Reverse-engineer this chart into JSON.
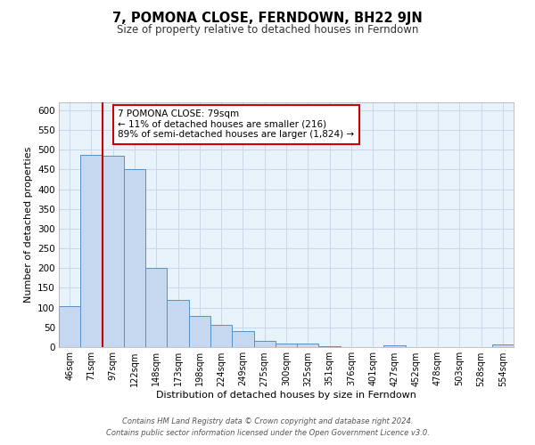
{
  "title": "7, POMONA CLOSE, FERNDOWN, BH22 9JN",
  "subtitle": "Size of property relative to detached houses in Ferndown",
  "xlabel": "Distribution of detached houses by size in Ferndown",
  "ylabel": "Number of detached properties",
  "bar_labels": [
    "46sqm",
    "71sqm",
    "97sqm",
    "122sqm",
    "148sqm",
    "173sqm",
    "198sqm",
    "224sqm",
    "249sqm",
    "275sqm",
    "300sqm",
    "325sqm",
    "351sqm",
    "376sqm",
    "401sqm",
    "427sqm",
    "452sqm",
    "478sqm",
    "503sqm",
    "528sqm",
    "554sqm"
  ],
  "bar_values": [
    103,
    488,
    485,
    450,
    200,
    120,
    80,
    57,
    40,
    15,
    10,
    10,
    2,
    0,
    0,
    5,
    0,
    0,
    0,
    0,
    7
  ],
  "bar_color": "#c5d8f0",
  "bar_edge_color": "#5590c8",
  "vline_color": "#cc0000",
  "annotation_line1": "7 POMONA CLOSE: 79sqm",
  "annotation_line2": "← 11% of detached houses are smaller (216)",
  "annotation_line3": "89% of semi-detached houses are larger (1,824) →",
  "annotation_box_color": "#ffffff",
  "annotation_box_edge": "#cc0000",
  "ylim": [
    0,
    620
  ],
  "yticks": [
    0,
    50,
    100,
    150,
    200,
    250,
    300,
    350,
    400,
    450,
    500,
    550,
    600
  ],
  "footer_line1": "Contains HM Land Registry data © Crown copyright and database right 2024.",
  "footer_line2": "Contains public sector information licensed under the Open Government Licence v3.0.",
  "grid_color": "#c8d8e8",
  "bg_color": "#e8f2fa"
}
